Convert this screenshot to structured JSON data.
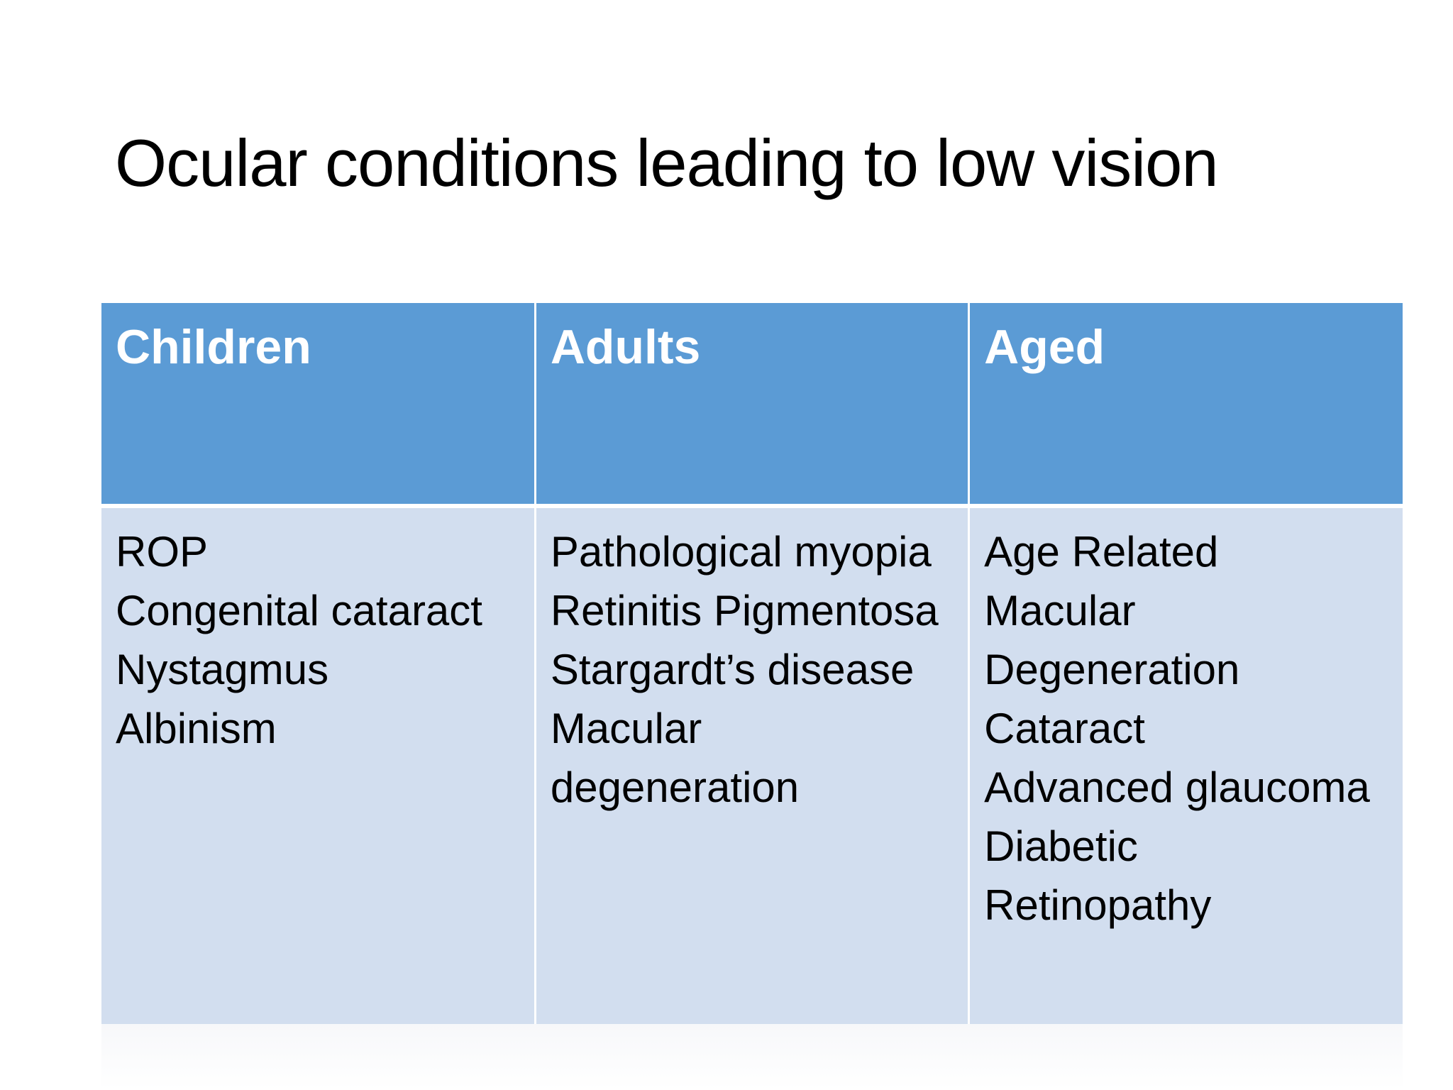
{
  "slide": {
    "title": "Ocular conditions leading to low vision"
  },
  "table": {
    "columns": [
      {
        "header": "Children",
        "lines": [
          "ROP",
          "Congenital cataract",
          "Nystagmus",
          "Albinism"
        ]
      },
      {
        "header": "Adults",
        "lines": [
          "Pathological myopia",
          "Retinitis Pigmentosa",
          "Stargardt’s disease",
          "Macular",
          "degeneration"
        ]
      },
      {
        "header": "Aged",
        "lines": [
          "Age Related",
          "Macular",
          "Degeneration",
          "Cataract",
          "Advanced glaucoma",
          "Diabetic",
          "Retinopathy"
        ]
      }
    ]
  },
  "colors": {
    "header_fill": "#5b9bd5",
    "body_fill": "#d2deef",
    "header_text": "#ffffff",
    "body_text": "#000000"
  }
}
